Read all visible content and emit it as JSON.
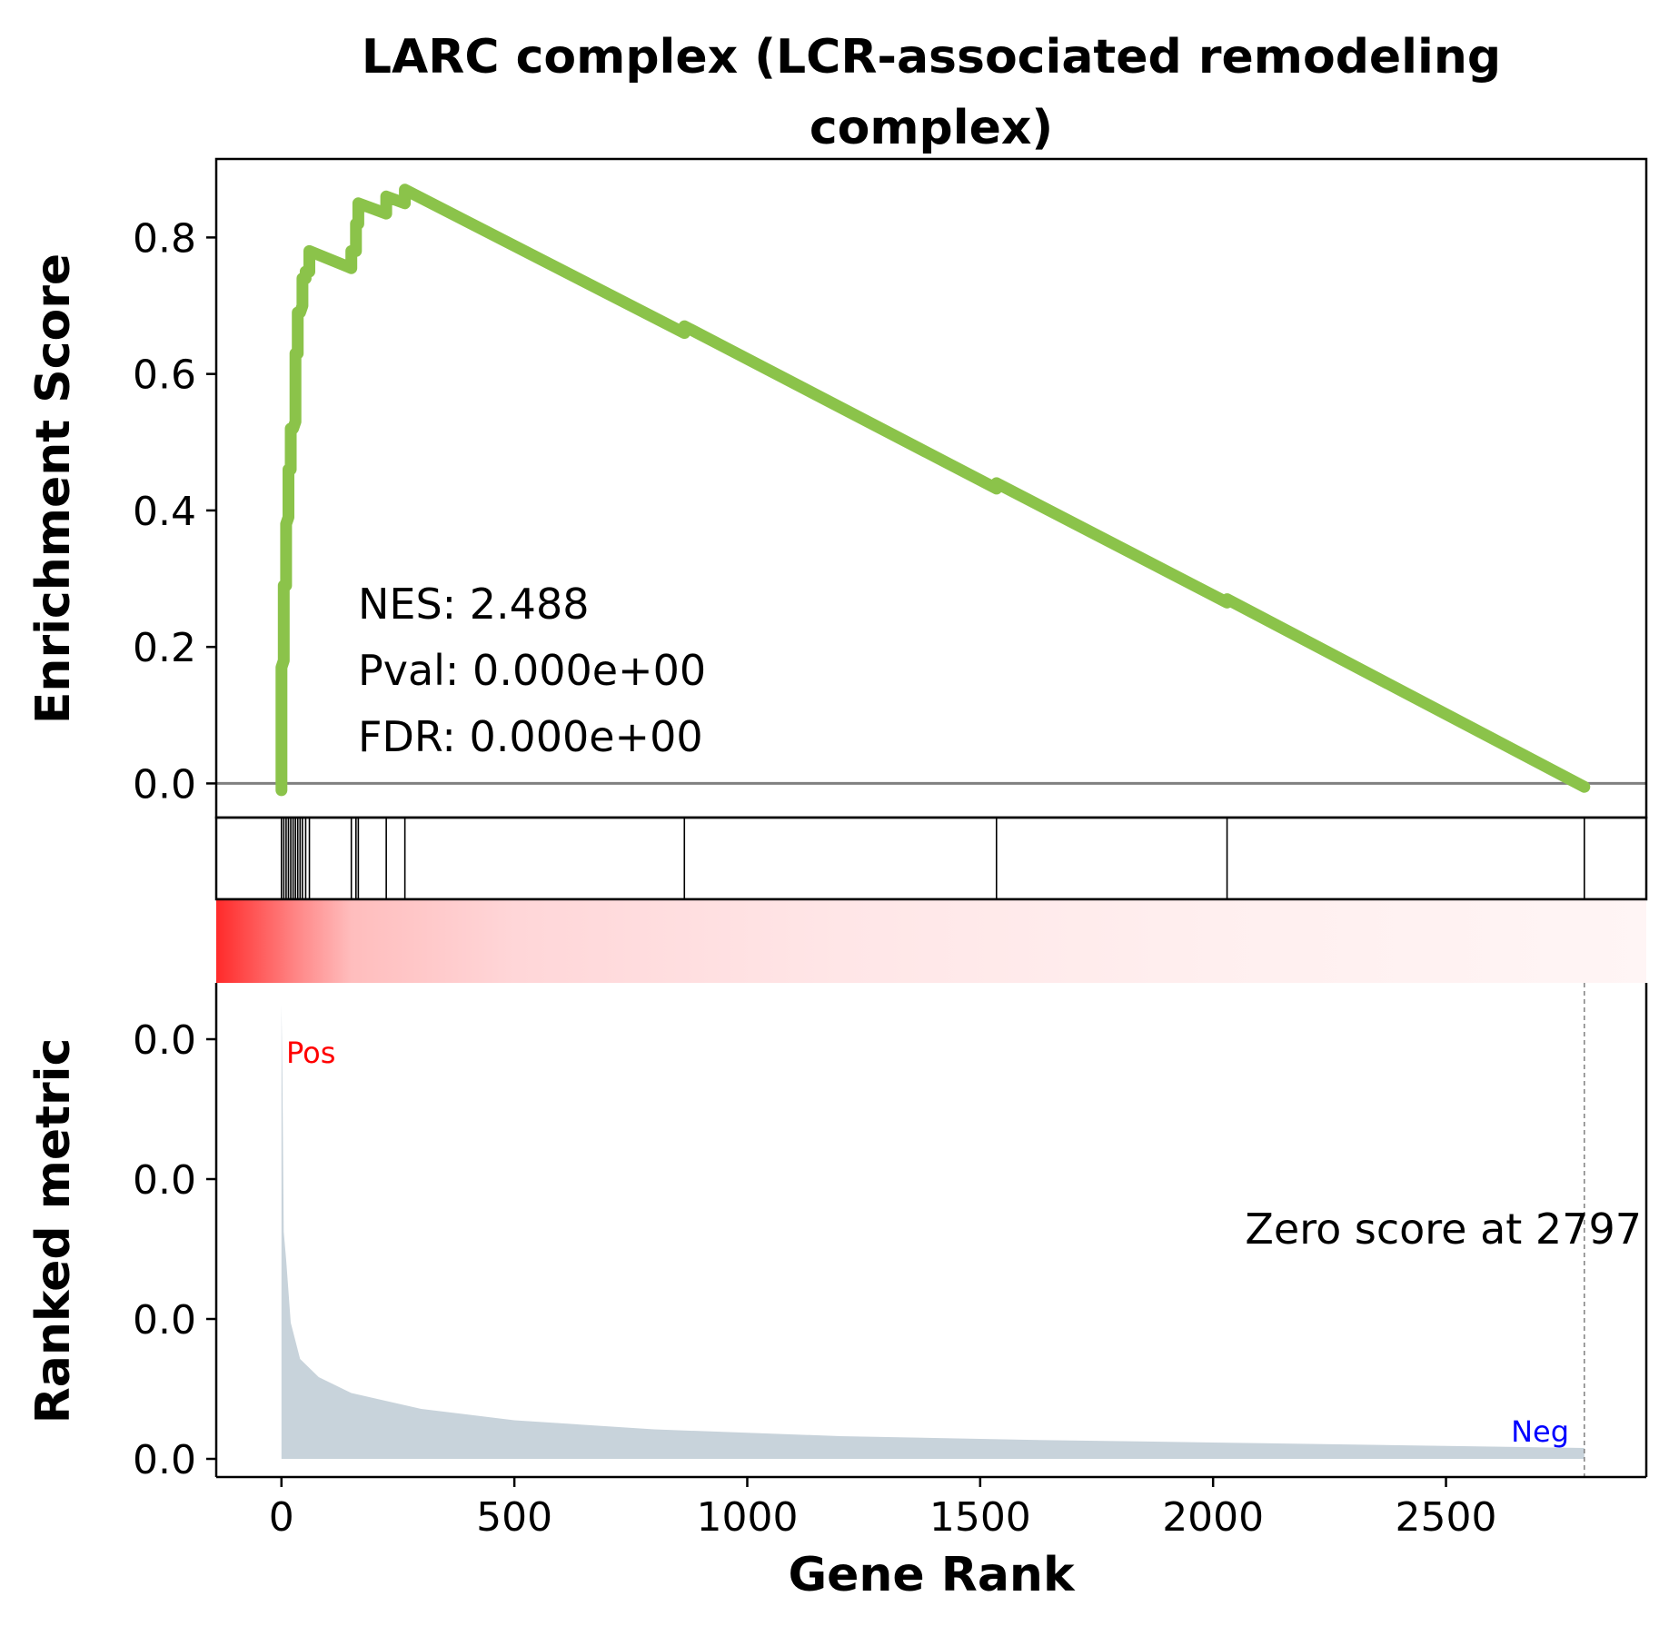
{
  "chart_data": {
    "type": "line",
    "title_line1": "LARC complex (LCR-associated remodeling",
    "title_line2": "complex)",
    "xlabel": "Gene Rank",
    "ylabel_top": "Enrichment Score",
    "ylabel_bottom": "Ranked metric",
    "xlim": [
      -140,
      2930
    ],
    "x_ticks": [
      0,
      500,
      1000,
      1500,
      2000,
      2500
    ],
    "es_ylim": [
      -0.05,
      0.915
    ],
    "es_ticks": [
      "0.0",
      "0.2",
      "0.4",
      "0.6",
      "0.8"
    ],
    "es_tick_values": [
      0.0,
      0.2,
      0.4,
      0.6,
      0.8
    ],
    "metric_tick_labels": [
      "0.0",
      "0.0",
      "0.0",
      "0.0"
    ],
    "stats": {
      "nes": "NES: 2.488",
      "pval": "Pval: 0.000e+00",
      "fdr": "FDR: 0.000e+00"
    },
    "zero_score_label": "Zero score at 2797",
    "zero_score_rank": 2797,
    "pos_label": "Pos",
    "neg_label": "Neg",
    "line_color": "#8bc34a",
    "metric_color": "#c8d3db",
    "hits": [
      0,
      5,
      10,
      15,
      20,
      25,
      30,
      35,
      40,
      45,
      52,
      60,
      150,
      160,
      165,
      225,
      265,
      865,
      1535,
      2030,
      2797
    ],
    "enrichment_score": [
      {
        "x": 0,
        "y": -0.01
      },
      {
        "x": 0,
        "y": 0.17
      },
      {
        "x": 5,
        "y": 0.18
      },
      {
        "x": 5,
        "y": 0.29
      },
      {
        "x": 10,
        "y": 0.29
      },
      {
        "x": 10,
        "y": 0.38
      },
      {
        "x": 15,
        "y": 0.39
      },
      {
        "x": 15,
        "y": 0.46
      },
      {
        "x": 20,
        "y": 0.46
      },
      {
        "x": 20,
        "y": 0.52
      },
      {
        "x": 25,
        "y": 0.52
      },
      {
        "x": 30,
        "y": 0.53
      },
      {
        "x": 30,
        "y": 0.63
      },
      {
        "x": 35,
        "y": 0.63
      },
      {
        "x": 35,
        "y": 0.69
      },
      {
        "x": 40,
        "y": 0.69
      },
      {
        "x": 45,
        "y": 0.7
      },
      {
        "x": 45,
        "y": 0.74
      },
      {
        "x": 52,
        "y": 0.74
      },
      {
        "x": 52,
        "y": 0.75
      },
      {
        "x": 60,
        "y": 0.75
      },
      {
        "x": 60,
        "y": 0.78
      },
      {
        "x": 150,
        "y": 0.755
      },
      {
        "x": 150,
        "y": 0.78
      },
      {
        "x": 160,
        "y": 0.78
      },
      {
        "x": 160,
        "y": 0.82
      },
      {
        "x": 165,
        "y": 0.82
      },
      {
        "x": 165,
        "y": 0.85
      },
      {
        "x": 225,
        "y": 0.835
      },
      {
        "x": 225,
        "y": 0.86
      },
      {
        "x": 265,
        "y": 0.85
      },
      {
        "x": 265,
        "y": 0.87
      },
      {
        "x": 865,
        "y": 0.66
      },
      {
        "x": 865,
        "y": 0.67
      },
      {
        "x": 1535,
        "y": 0.432
      },
      {
        "x": 1535,
        "y": 0.44
      },
      {
        "x": 2030,
        "y": 0.265
      },
      {
        "x": 2030,
        "y": 0.27
      },
      {
        "x": 2797,
        "y": -0.005
      }
    ],
    "heatmap_gradient": [
      {
        "rank": 0,
        "color": "#ff2a2a"
      },
      {
        "rank": 40,
        "color": "#ff8a8a"
      },
      {
        "rank": 150,
        "color": "#ffbdbd"
      },
      {
        "rank": 500,
        "color": "#ffd6d8"
      },
      {
        "rank": 1200,
        "color": "#ffe6e7"
      },
      {
        "rank": 2000,
        "color": "#ffefef"
      },
      {
        "rank": 2930,
        "color": "#fff5f5"
      }
    ],
    "ranked_metric_profile": [
      {
        "rank": 0,
        "v": 1.0
      },
      {
        "rank": 2,
        "v": 0.85
      },
      {
        "rank": 5,
        "v": 0.5
      },
      {
        "rank": 10,
        "v": 0.44
      },
      {
        "rank": 20,
        "v": 0.3
      },
      {
        "rank": 40,
        "v": 0.22
      },
      {
        "rank": 80,
        "v": 0.18
      },
      {
        "rank": 150,
        "v": 0.145
      },
      {
        "rank": 300,
        "v": 0.11
      },
      {
        "rank": 500,
        "v": 0.085
      },
      {
        "rank": 800,
        "v": 0.065
      },
      {
        "rank": 1200,
        "v": 0.05
      },
      {
        "rank": 1600,
        "v": 0.042
      },
      {
        "rank": 2000,
        "v": 0.036
      },
      {
        "rank": 2400,
        "v": 0.03
      },
      {
        "rank": 2797,
        "v": 0.024
      }
    ]
  }
}
